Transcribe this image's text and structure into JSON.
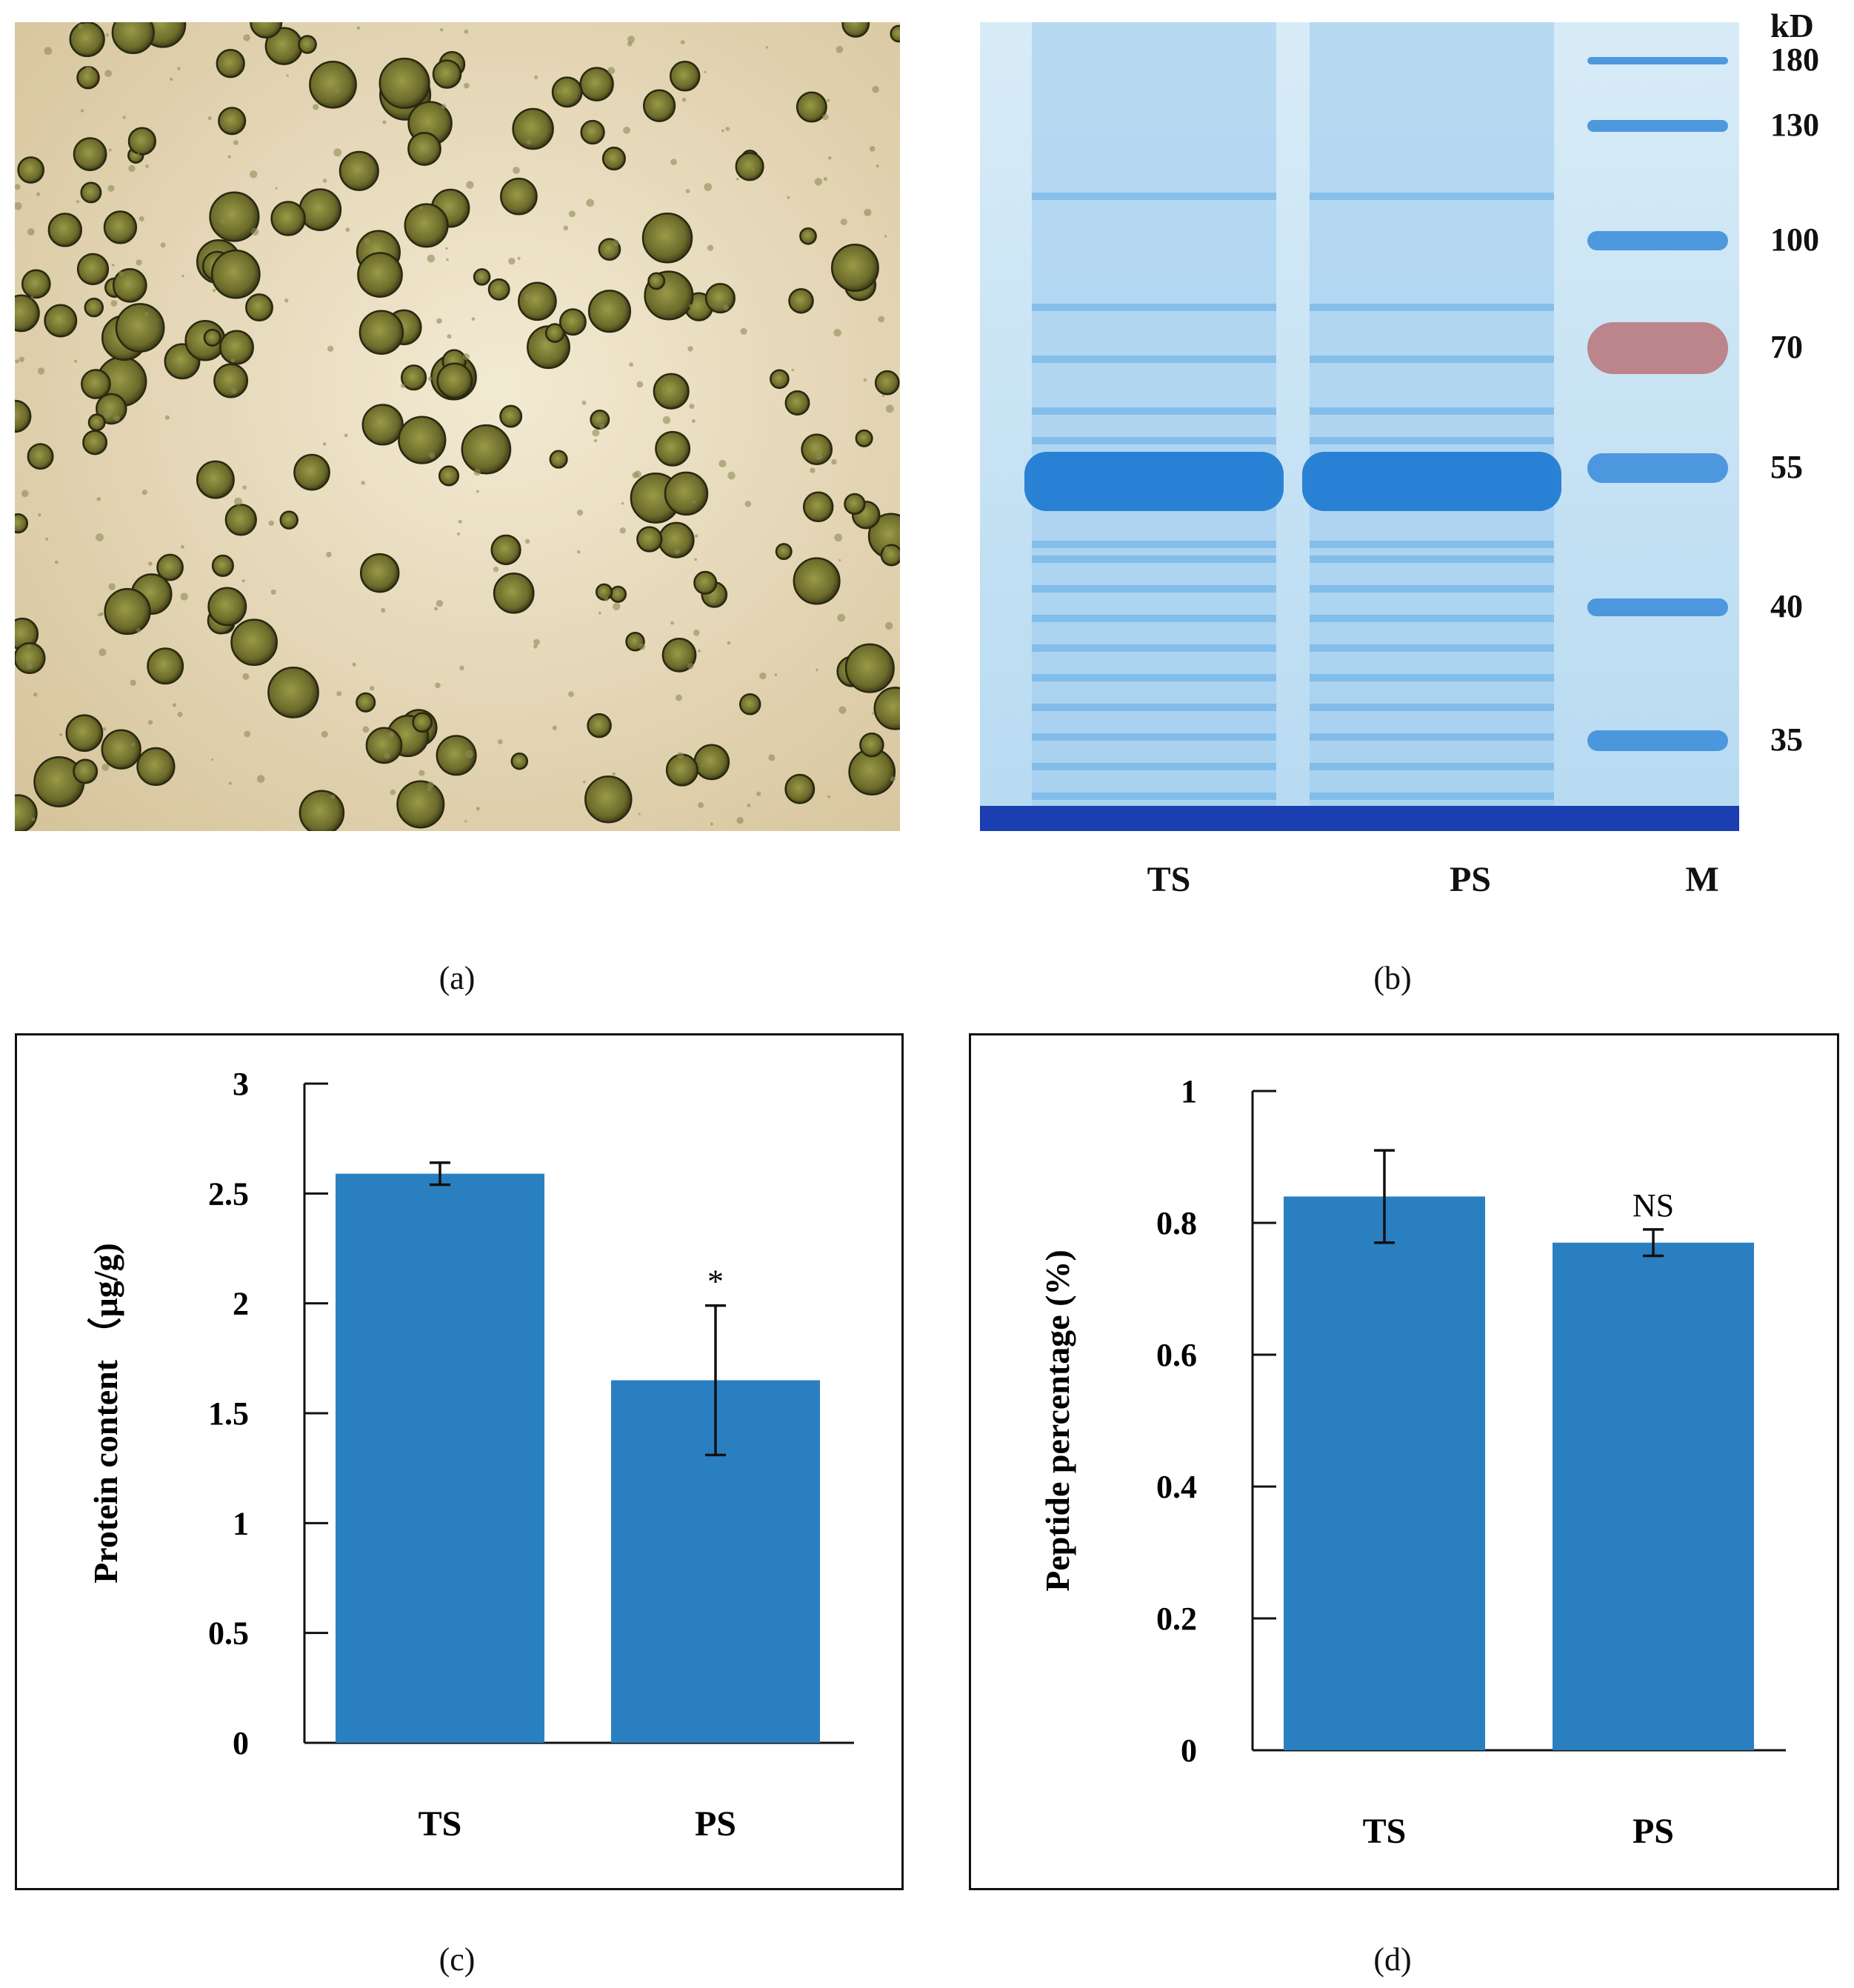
{
  "figure": {
    "captions": {
      "a": "(a)",
      "b": "(b)",
      "c": "(c)",
      "d": "(d)"
    }
  },
  "gel": {
    "unit_label": "kD",
    "markers": [
      "180",
      "130",
      "100",
      "70",
      "55",
      "40",
      "35"
    ],
    "lanes": [
      "TS",
      "PS",
      "M"
    ]
  },
  "colors": {
    "bar": "#2a7fc1",
    "gel_background": "#c9e3f4",
    "gel_band": "#1a78d0",
    "marker_70": "#b97a80",
    "micrograph_background": "#e9dcbf",
    "cell": "#6a6a2a"
  },
  "chart_data": [
    {
      "type": "bar",
      "categories": [
        "TS",
        "PS"
      ],
      "values": [
        2.59,
        1.65
      ],
      "errors": [
        0.05,
        0.34
      ],
      "annotations": [
        "",
        "*"
      ],
      "title": "",
      "xlabel": "",
      "ylabel": "Protein content （μg/g)",
      "ylim": [
        0,
        3
      ],
      "yticks": [
        "0",
        "0.5",
        "1",
        "1.5",
        "2",
        "2.5",
        "3"
      ],
      "grid": false
    },
    {
      "type": "bar",
      "categories": [
        "TS",
        "PS"
      ],
      "values": [
        0.84,
        0.77
      ],
      "errors": [
        0.07,
        0.02
      ],
      "annotations": [
        "",
        "NS"
      ],
      "title": "",
      "xlabel": "",
      "ylabel": "Peptide percentage (%)",
      "ylim": [
        0,
        1
      ],
      "yticks": [
        "0",
        "0.2",
        "0.4",
        "0.6",
        "0.8",
        "1"
      ],
      "grid": false
    }
  ]
}
